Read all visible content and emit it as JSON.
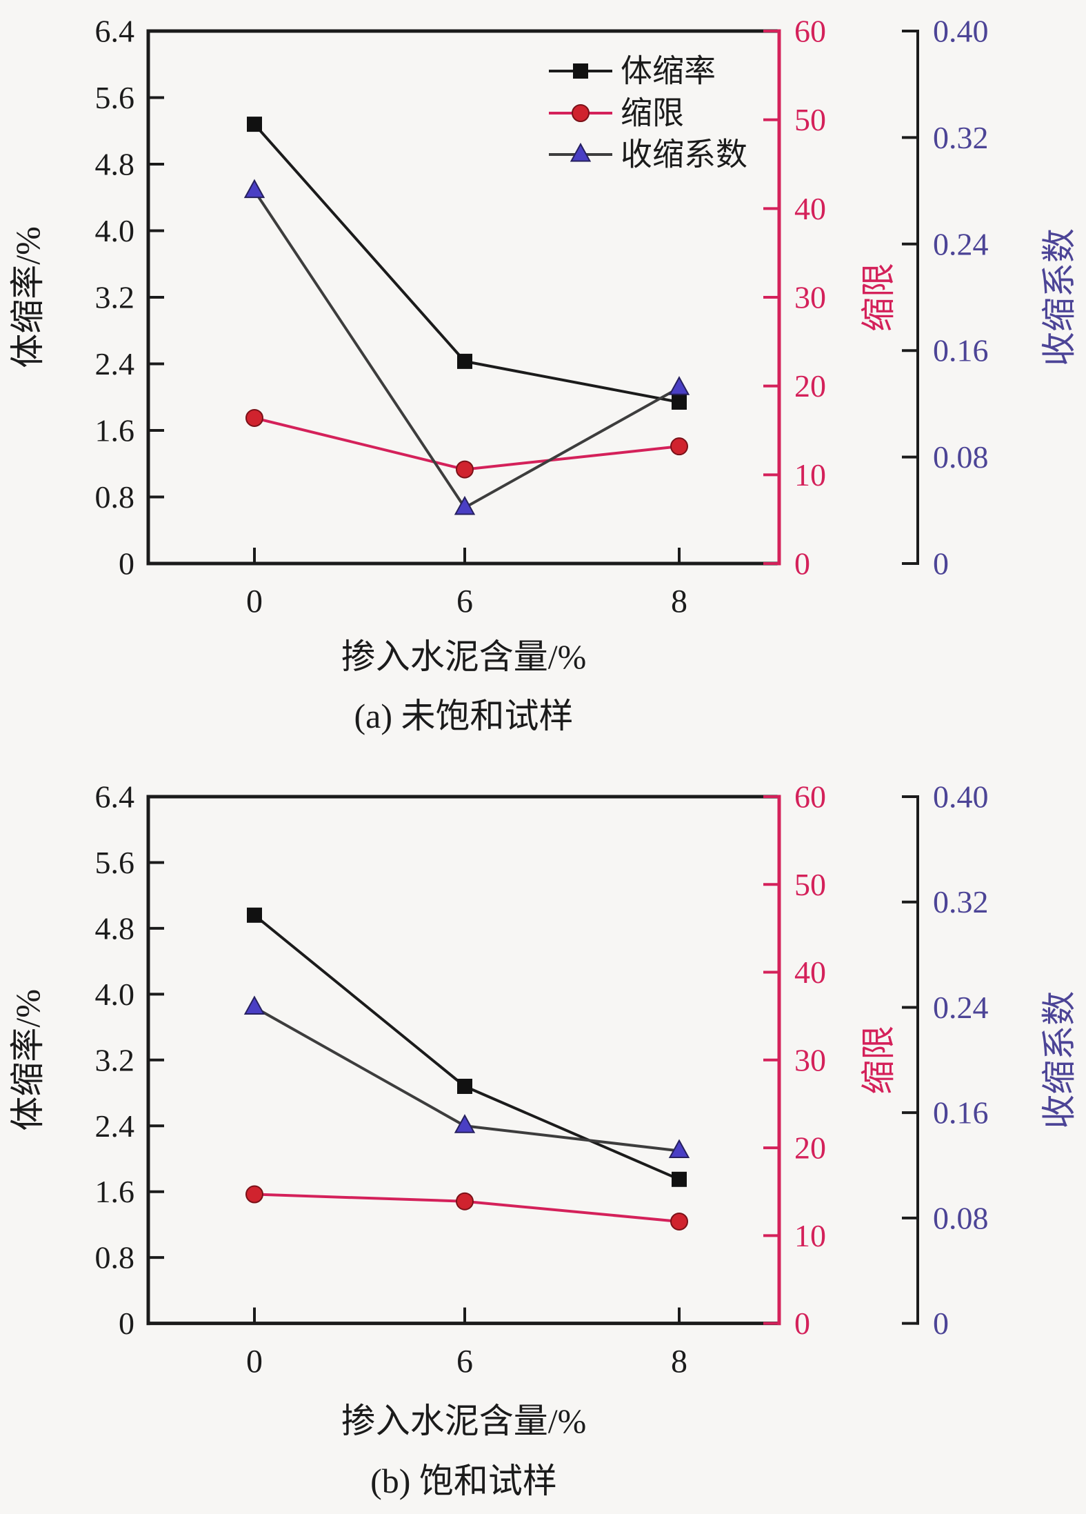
{
  "page": {
    "background": "#f7f6f4"
  },
  "colors": {
    "black": "#1b1b1b",
    "crimson": "#d4215a",
    "red_marker": "#d0232e",
    "blue_marker": "#4a3fc4",
    "blue_label": "#4c4496",
    "coeff_line": "#3d3d3d"
  },
  "chart_data": [
    {
      "type": "line",
      "caption": "(a) 未饱和试样",
      "xlabel": "掺入水泥含量/%",
      "categories": [
        "0",
        "6",
        "8"
      ],
      "x_values": [
        0,
        6,
        8
      ],
      "grid": false,
      "legend_position": "top-right-inside",
      "axes": {
        "left": {
          "label": "体缩率/%",
          "min": 0,
          "max": 6.4,
          "ticks": [
            "0",
            "0.8",
            "1.6",
            "2.4",
            "3.2",
            "4.0",
            "4.8",
            "5.6",
            "6.4"
          ],
          "color": "#1b1b1b"
        },
        "right1": {
          "label": "缩限",
          "min": 0,
          "max": 60,
          "ticks": [
            "0",
            "10",
            "20",
            "30",
            "40",
            "50",
            "60"
          ],
          "color": "#d4215a"
        },
        "right2": {
          "label": "收缩系数",
          "min": 0,
          "max": 0.4,
          "ticks": [
            "0",
            "0.08",
            "0.16",
            "0.24",
            "0.32",
            "0.40"
          ],
          "color": "#4c4496"
        }
      },
      "series": [
        {
          "name": "体缩率",
          "key": "volume-shrinkage",
          "axis": "left",
          "marker": "square",
          "color": "#1b1b1b",
          "marker_color": "#111111",
          "values": [
            5.28,
            2.43,
            1.94
          ]
        },
        {
          "name": "缩限",
          "key": "shrinkage-limit",
          "axis": "right1",
          "marker": "circle",
          "color": "#d4215a",
          "marker_color": "#d0232e",
          "values": [
            16.4,
            10.6,
            13.2
          ]
        },
        {
          "name": "收缩系数",
          "key": "shrinkage-coefficient",
          "axis": "right2",
          "marker": "triangle",
          "color": "#3d3d3d",
          "marker_color": "#4a3fc4",
          "values": [
            0.28,
            0.042,
            0.132
          ]
        }
      ],
      "legend": {
        "items": [
          "体缩率",
          "缩限",
          "收缩系数"
        ]
      }
    },
    {
      "type": "line",
      "caption": "(b) 饱和试样",
      "xlabel": "掺入水泥含量/%",
      "categories": [
        "0",
        "6",
        "8"
      ],
      "x_values": [
        0,
        6,
        8
      ],
      "grid": false,
      "legend_position": null,
      "axes": {
        "left": {
          "label": "体缩率/%",
          "min": 0,
          "max": 6.4,
          "ticks": [
            "0",
            "0.8",
            "1.6",
            "2.4",
            "3.2",
            "4.0",
            "4.8",
            "5.6",
            "6.4"
          ],
          "color": "#1b1b1b"
        },
        "right1": {
          "label": "缩限",
          "min": 0,
          "max": 60,
          "ticks": [
            "0",
            "10",
            "20",
            "30",
            "40",
            "50",
            "60"
          ],
          "color": "#d4215a"
        },
        "right2": {
          "label": "收缩系数",
          "min": 0,
          "max": 0.4,
          "ticks": [
            "0",
            "0.08",
            "0.16",
            "0.24",
            "0.32",
            "0.40"
          ],
          "color": "#4c4496"
        }
      },
      "series": [
        {
          "name": "体缩率",
          "key": "volume-shrinkage",
          "axis": "left",
          "marker": "square",
          "color": "#1b1b1b",
          "marker_color": "#111111",
          "values": [
            4.96,
            2.88,
            1.75
          ]
        },
        {
          "name": "缩限",
          "key": "shrinkage-limit",
          "axis": "right1",
          "marker": "circle",
          "color": "#d4215a",
          "marker_color": "#d0232e",
          "values": [
            14.7,
            13.9,
            11.6
          ]
        },
        {
          "name": "收缩系数",
          "key": "shrinkage-coefficient",
          "axis": "right2",
          "marker": "triangle",
          "color": "#3d3d3d",
          "marker_color": "#4a3fc4",
          "values": [
            0.24,
            0.15,
            0.131
          ]
        }
      ],
      "legend": null
    }
  ]
}
